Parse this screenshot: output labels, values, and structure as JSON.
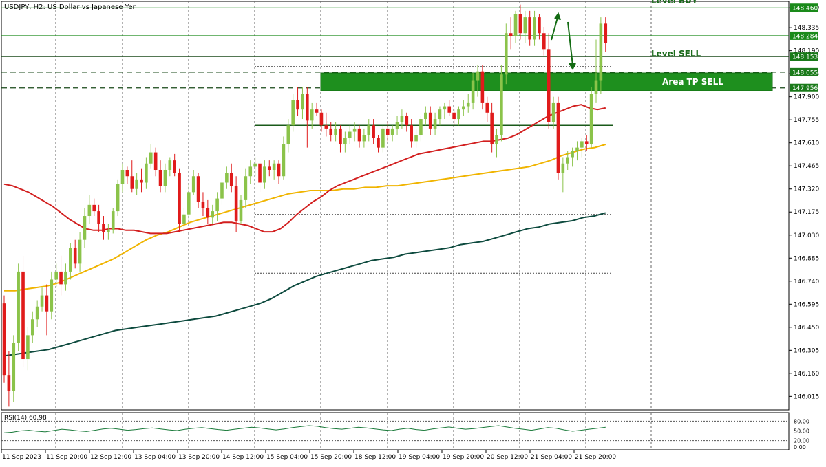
{
  "chart_data": [
    {
      "type": "candlestick",
      "title": "USDJPY, H2:  US Dollar vs Japanese Yen",
      "ylim": [
        145.93,
        148.5
      ],
      "grid": true,
      "y_ticks": [
        "148.460",
        "148.335",
        "148.190",
        "148.045",
        "147.900",
        "147.755",
        "147.610",
        "147.465",
        "147.320",
        "147.175",
        "147.030",
        "146.885",
        "146.740",
        "146.595",
        "146.450",
        "146.305",
        "146.160",
        "146.015"
      ],
      "x_tick_labels": [
        "11 Sep 2023",
        "11 Sep 20:00",
        "12 Sep 12:00",
        "13 Sep 04:00",
        "13 Sep 20:00",
        "14 Sep 12:00",
        "15 Sep 04:00",
        "15 Sep 20:00",
        "18 Sep 12:00",
        "19 Sep 04:00",
        "19 Sep 20:00",
        "20 Sep 12:00",
        "21 Sep 04:00",
        "21 Sep 20:00"
      ],
      "price_labels": [
        {
          "value": 148.46,
          "text": "148.460",
          "color": "#1a8a1a"
        },
        {
          "value": 148.284,
          "text": "148.284",
          "color": "#1a8a1a"
        },
        {
          "value": 148.153,
          "text": "148.153",
          "color": "#1a7a1a"
        },
        {
          "value": 148.055,
          "text": "148.055",
          "color": "#1a7a1a"
        },
        {
          "value": 147.956,
          "text": "147.956",
          "color": "#1a7a1a"
        }
      ],
      "annotations": {
        "level_buy": "Level BUY",
        "level_sell": "Level SELL",
        "area_tp_sell": "Area TP SELL"
      },
      "levels": {
        "buy": 148.46,
        "sell": 148.153,
        "tp_area": [
          147.956,
          148.055
        ],
        "mid": 147.72,
        "dotted_top": 148.09,
        "dotted_mid": 147.16,
        "dotted_low": 146.79
      },
      "candles": [
        [
          146.6,
          146.65,
          146.1,
          146.15
        ],
        [
          146.15,
          146.3,
          145.95,
          146.05
        ],
        [
          146.05,
          146.4,
          145.98,
          146.35
        ],
        [
          146.35,
          146.85,
          146.3,
          146.8
        ],
        [
          146.8,
          146.9,
          146.2,
          146.25
        ],
        [
          146.25,
          146.45,
          146.18,
          146.4
        ],
        [
          146.4,
          146.55,
          146.35,
          146.5
        ],
        [
          146.5,
          146.62,
          146.45,
          146.58
        ],
        [
          146.58,
          146.7,
          146.55,
          146.65
        ],
        [
          146.65,
          146.72,
          146.4,
          146.55
        ],
        [
          146.55,
          146.8,
          146.5,
          146.75
        ],
        [
          146.75,
          146.85,
          146.7,
          146.8
        ],
        [
          146.8,
          146.9,
          146.65,
          146.72
        ],
        [
          146.72,
          146.85,
          146.68,
          146.8
        ],
        [
          146.8,
          146.98,
          146.75,
          146.95
        ],
        [
          146.95,
          147.0,
          146.82,
          146.85
        ],
        [
          146.85,
          147.05,
          146.8,
          147.0
        ],
        [
          147.0,
          147.2,
          146.95,
          147.15
        ],
        [
          147.15,
          147.28,
          147.1,
          147.22
        ],
        [
          147.22,
          147.26,
          147.15,
          147.18
        ],
        [
          147.18,
          147.22,
          147.05,
          147.1
        ],
        [
          147.1,
          147.15,
          147.0,
          147.05
        ],
        [
          147.05,
          147.1,
          147.0,
          147.06
        ],
        [
          147.06,
          147.2,
          147.04,
          147.18
        ],
        [
          147.18,
          147.38,
          147.15,
          147.35
        ],
        [
          147.35,
          147.48,
          147.3,
          147.44
        ],
        [
          147.44,
          147.46,
          147.35,
          147.4
        ],
        [
          147.4,
          147.5,
          147.3,
          147.32
        ],
        [
          147.32,
          147.42,
          147.28,
          147.38
        ],
        [
          147.38,
          147.45,
          147.3,
          147.36
        ],
        [
          147.36,
          147.52,
          147.32,
          147.48
        ],
        [
          147.48,
          147.6,
          147.45,
          147.55
        ],
        [
          147.55,
          147.58,
          147.4,
          147.44
        ],
        [
          147.44,
          147.5,
          147.3,
          147.34
        ],
        [
          147.34,
          147.48,
          147.3,
          147.44
        ],
        [
          147.44,
          147.52,
          147.4,
          147.5
        ],
        [
          147.5,
          147.54,
          147.4,
          147.42
        ],
        [
          147.42,
          147.45,
          147.05,
          147.1
        ],
        [
          147.1,
          147.2,
          147.04,
          147.16
        ],
        [
          147.16,
          147.35,
          147.12,
          147.3
        ],
        [
          147.3,
          147.44,
          147.28,
          147.4
        ],
        [
          147.4,
          147.42,
          147.2,
          147.24
        ],
        [
          147.24,
          147.3,
          147.15,
          147.2
        ],
        [
          147.2,
          147.25,
          147.1,
          147.14
        ],
        [
          147.14,
          147.22,
          147.1,
          147.18
        ],
        [
          147.18,
          147.3,
          147.12,
          147.26
        ],
        [
          147.26,
          147.4,
          147.22,
          147.36
        ],
        [
          147.36,
          147.46,
          147.32,
          147.42
        ],
        [
          147.42,
          147.48,
          147.3,
          147.34
        ],
        [
          147.34,
          147.4,
          147.05,
          147.12
        ],
        [
          147.12,
          147.28,
          147.1,
          147.25
        ],
        [
          147.25,
          147.45,
          147.2,
          147.4
        ],
        [
          147.4,
          147.5,
          147.35,
          147.46
        ],
        [
          147.46,
          147.52,
          147.4,
          147.48
        ],
        [
          147.48,
          147.5,
          147.3,
          147.36
        ],
        [
          147.36,
          147.5,
          147.32,
          147.46
        ],
        [
          147.46,
          147.5,
          147.4,
          147.44
        ],
        [
          147.44,
          147.5,
          147.38,
          147.48
        ],
        [
          147.48,
          147.5,
          147.35,
          147.4
        ],
        [
          147.4,
          147.65,
          147.38,
          147.6
        ],
        [
          147.6,
          147.76,
          147.55,
          147.72
        ],
        [
          147.72,
          147.92,
          147.68,
          147.88
        ],
        [
          147.88,
          147.96,
          147.78,
          147.82
        ],
        [
          147.82,
          147.96,
          147.76,
          147.92
        ],
        [
          147.92,
          147.96,
          147.58,
          147.75
        ],
        [
          147.75,
          147.86,
          147.7,
          147.82
        ],
        [
          147.82,
          147.86,
          147.78,
          147.8
        ],
        [
          147.8,
          147.82,
          147.68,
          147.72
        ],
        [
          147.72,
          147.8,
          147.65,
          147.7
        ],
        [
          147.7,
          147.74,
          147.62,
          147.66
        ],
        [
          147.66,
          147.74,
          147.62,
          147.7
        ],
        [
          147.7,
          147.72,
          147.55,
          147.6
        ],
        [
          147.6,
          147.68,
          147.55,
          147.64
        ],
        [
          147.64,
          147.72,
          147.6,
          147.68
        ],
        [
          147.68,
          147.74,
          147.62,
          147.7
        ],
        [
          147.7,
          147.72,
          147.58,
          147.62
        ],
        [
          147.62,
          147.7,
          147.58,
          147.66
        ],
        [
          147.66,
          147.76,
          147.62,
          147.72
        ],
        [
          147.72,
          147.76,
          147.6,
          147.64
        ],
        [
          147.64,
          147.66,
          147.55,
          147.58
        ],
        [
          147.58,
          147.72,
          147.55,
          147.7
        ],
        [
          147.7,
          147.74,
          147.62,
          147.66
        ],
        [
          147.66,
          147.72,
          147.62,
          147.7
        ],
        [
          147.7,
          147.78,
          147.66,
          147.74
        ],
        [
          147.74,
          147.82,
          147.7,
          147.78
        ],
        [
          147.78,
          147.8,
          147.68,
          147.72
        ],
        [
          147.72,
          147.76,
          147.58,
          147.62
        ],
        [
          147.62,
          147.7,
          147.58,
          147.66
        ],
        [
          147.66,
          147.78,
          147.62,
          147.76
        ],
        [
          147.76,
          147.84,
          147.72,
          147.8
        ],
        [
          147.8,
          147.84,
          147.66,
          147.7
        ],
        [
          147.7,
          147.8,
          147.66,
          147.76
        ],
        [
          147.76,
          147.84,
          147.72,
          147.82
        ],
        [
          147.82,
          147.86,
          147.76,
          147.84
        ],
        [
          147.84,
          147.88,
          147.78,
          147.8
        ],
        [
          147.8,
          147.82,
          147.72,
          147.76
        ],
        [
          147.76,
          147.84,
          147.72,
          147.82
        ],
        [
          147.82,
          147.88,
          147.78,
          147.84
        ],
        [
          147.84,
          147.92,
          147.8,
          147.86
        ],
        [
          147.86,
          148.05,
          147.82,
          148.0
        ],
        [
          148.0,
          148.1,
          147.9,
          148.06
        ],
        [
          148.06,
          148.1,
          147.82,
          147.86
        ],
        [
          147.86,
          147.9,
          147.74,
          147.8
        ],
        [
          147.8,
          147.86,
          147.55,
          147.6
        ],
        [
          147.6,
          147.7,
          147.52,
          147.66
        ],
        [
          147.66,
          148.1,
          147.62,
          148.04
        ],
        [
          148.04,
          148.36,
          147.98,
          148.3
        ],
        [
          148.3,
          148.4,
          148.2,
          148.28
        ],
        [
          148.28,
          148.44,
          148.24,
          148.42
        ],
        [
          148.42,
          148.48,
          148.26,
          148.3
        ],
        [
          148.3,
          148.44,
          148.24,
          148.4
        ],
        [
          148.4,
          148.44,
          148.22,
          148.26
        ],
        [
          148.26,
          148.44,
          148.22,
          148.4
        ],
        [
          148.4,
          148.42,
          148.26,
          148.3
        ],
        [
          148.3,
          148.34,
          148.16,
          148.2
        ],
        [
          148.2,
          148.3,
          147.7,
          147.74
        ],
        [
          147.74,
          147.9,
          147.7,
          147.86
        ],
        [
          147.86,
          147.9,
          147.38,
          147.42
        ],
        [
          147.42,
          147.52,
          147.3,
          147.48
        ],
        [
          147.48,
          147.56,
          147.44,
          147.52
        ],
        [
          147.52,
          147.58,
          147.46,
          147.56
        ],
        [
          147.56,
          147.62,
          147.5,
          147.58
        ],
        [
          147.58,
          147.64,
          147.52,
          147.62
        ],
        [
          147.62,
          147.66,
          147.56,
          147.6
        ],
        [
          147.6,
          147.96,
          147.58,
          147.92
        ],
        [
          147.92,
          148.26,
          147.86,
          148.0
        ],
        [
          148.0,
          148.4,
          147.92,
          148.36
        ],
        [
          148.36,
          148.4,
          148.18,
          148.24
        ]
      ],
      "ma_fast": [
        147.35,
        147.34,
        147.32,
        147.3,
        147.27,
        147.24,
        147.21,
        147.17,
        147.13,
        147.1,
        147.07,
        147.06,
        147.06,
        147.07,
        147.07,
        147.06,
        147.06,
        147.05,
        147.04,
        147.04,
        147.04,
        147.05,
        147.06,
        147.07,
        147.08,
        147.09,
        147.1,
        147.11,
        147.11,
        147.1,
        147.09,
        147.07,
        147.05,
        147.05,
        147.07,
        147.11,
        147.16,
        147.2,
        147.24,
        147.27,
        147.31,
        147.34,
        147.36,
        147.38,
        147.4,
        147.42,
        147.44,
        147.46,
        147.48,
        147.5,
        147.52,
        147.54,
        147.55,
        147.56,
        147.57,
        147.58,
        147.59,
        147.6,
        147.61,
        147.62,
        147.62,
        147.63,
        147.64,
        147.66,
        147.69,
        147.72,
        147.75,
        147.78,
        147.8,
        147.82,
        147.84,
        147.85,
        147.83,
        147.82,
        147.83
      ],
      "ma_mid": [
        146.68,
        146.68,
        146.69,
        146.7,
        146.71,
        146.73,
        146.76,
        146.79,
        146.82,
        146.85,
        146.88,
        146.92,
        146.96,
        147.0,
        147.03,
        147.05,
        147.08,
        147.11,
        147.13,
        147.15,
        147.17,
        147.19,
        147.21,
        147.23,
        147.25,
        147.27,
        147.29,
        147.3,
        147.31,
        147.31,
        147.31,
        147.32,
        147.32,
        147.33,
        147.33,
        147.34,
        147.34,
        147.35,
        147.36,
        147.37,
        147.38,
        147.39,
        147.4,
        147.41,
        147.42,
        147.43,
        147.44,
        147.45,
        147.46,
        147.48,
        147.5,
        147.53,
        147.55,
        147.57,
        147.58,
        147.6
      ],
      "ma_slow": [
        146.27,
        146.28,
        146.29,
        146.3,
        146.31,
        146.33,
        146.35,
        146.37,
        146.39,
        146.41,
        146.43,
        146.44,
        146.45,
        146.46,
        146.47,
        146.48,
        146.49,
        146.5,
        146.51,
        146.52,
        146.54,
        146.56,
        146.58,
        146.6,
        146.63,
        146.67,
        146.71,
        146.74,
        146.77,
        146.79,
        146.81,
        146.83,
        146.85,
        146.87,
        146.88,
        146.89,
        146.91,
        146.92,
        146.93,
        146.94,
        146.95,
        146.97,
        146.98,
        146.99,
        147.01,
        147.03,
        147.05,
        147.07,
        147.08,
        147.1,
        147.11,
        147.12,
        147.14,
        147.15,
        147.17
      ]
    },
    {
      "type": "line",
      "title": "RSI(14) 60.98",
      "ylim": [
        0,
        100
      ],
      "y_ticks": [
        "80.00",
        "50.00",
        "20.00",
        "0.00"
      ],
      "levels": [
        80,
        50,
        20
      ],
      "rsi": [
        44,
        46,
        50,
        52,
        49,
        47,
        51,
        55,
        53,
        50,
        48,
        52,
        56,
        58,
        55,
        52,
        54,
        57,
        59,
        56,
        53,
        51,
        55,
        58,
        60,
        57,
        54,
        52,
        55,
        58,
        61,
        59,
        56,
        53,
        56,
        60,
        63,
        66,
        64,
        60,
        57,
        55,
        58,
        61,
        59,
        56,
        53,
        51,
        55,
        58,
        54,
        52,
        56,
        59,
        62,
        58,
        55,
        57,
        60,
        63,
        66,
        62,
        58,
        55,
        52,
        56,
        60,
        58,
        53,
        49,
        52,
        55,
        58,
        61
      ]
    }
  ]
}
